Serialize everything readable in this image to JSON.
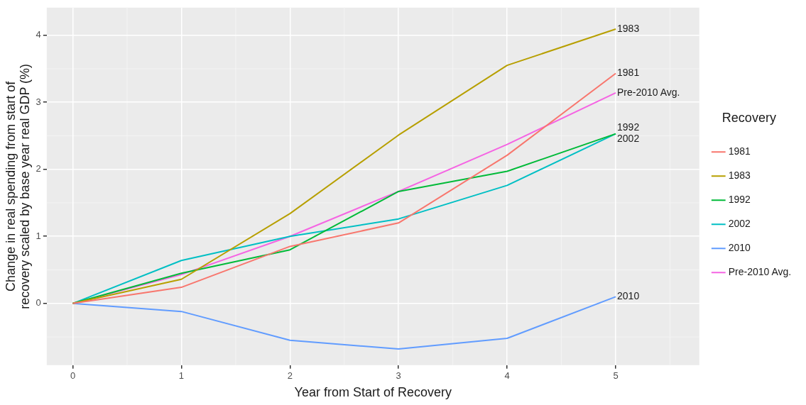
{
  "chart_data": {
    "type": "line",
    "xlabel": "Year from Start of Recovery",
    "ylabel": "Change in real spending from start of recovery scaled by base year real GDP (%)",
    "legend_title": "Recovery",
    "legend": "right",
    "grid": true,
    "marker": "none",
    "line_style": "solid",
    "x": [
      0,
      1,
      2,
      3,
      4,
      5
    ],
    "xlim": [
      -0.24,
      5.77
    ],
    "xticks": [
      0,
      1,
      2,
      3,
      4,
      5
    ],
    "ylim": [
      -0.92,
      4.41
    ],
    "yticks": [
      0,
      1,
      2,
      3,
      4
    ],
    "series": [
      {
        "name": "1981",
        "color": "#f8766d",
        "values": [
          0,
          0.24,
          0.85,
          1.2,
          2.21,
          3.43
        ]
      },
      {
        "name": "1983",
        "color": "#b79f00",
        "values": [
          0,
          0.36,
          1.34,
          2.51,
          3.55,
          4.09
        ]
      },
      {
        "name": "1992",
        "color": "#00ba38",
        "values": [
          0,
          0.45,
          0.8,
          1.67,
          1.97,
          2.53
        ]
      },
      {
        "name": "2002",
        "color": "#00bfc4",
        "values": [
          0,
          0.64,
          1.0,
          1.26,
          1.76,
          2.53
        ]
      },
      {
        "name": "2010",
        "color": "#619cff",
        "values": [
          0,
          -0.12,
          -0.55,
          -0.68,
          -0.52,
          0.1
        ]
      },
      {
        "name": "Pre-2010 Avg.",
        "color": "#f564e3",
        "values": [
          0,
          0.43,
          1.0,
          1.67,
          2.37,
          3.14
        ]
      }
    ]
  }
}
